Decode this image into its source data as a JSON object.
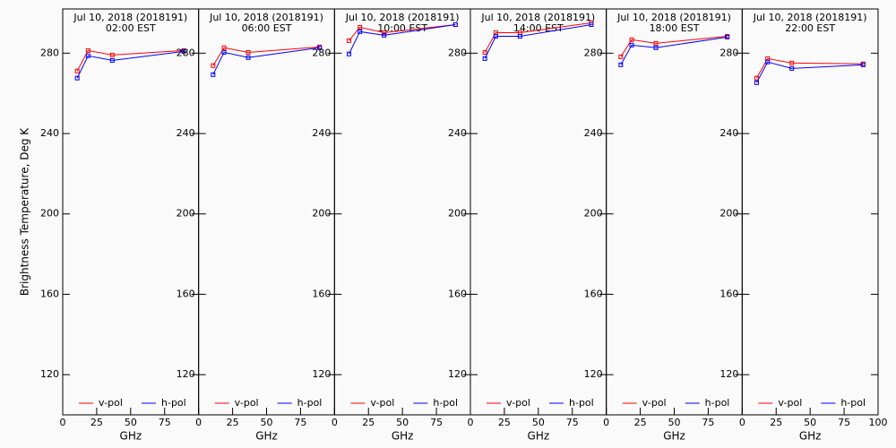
{
  "chart_data": [
    {
      "type": "line",
      "title": "Jul 10, 2018 (2018191)",
      "subtitle": "02:00 EST",
      "ylabel": "Brightness Temperature, Deg K",
      "xlabel": "GHz",
      "x": [
        10.65,
        18.7,
        36.5,
        89
      ],
      "xlim": [
        0,
        100
      ],
      "xticks": [
        0,
        25,
        50,
        75
      ],
      "ylim": [
        100,
        302
      ],
      "yticks": [
        120,
        160,
        200,
        240,
        280
      ],
      "legend": "lower",
      "series": [
        {
          "name": "v-pol",
          "color": "#ff0000",
          "values": [
            271.1,
            281.3,
            279.1,
            281.3
          ]
        },
        {
          "name": "h-pol",
          "color": "#0000ff",
          "values": [
            267.6,
            278.7,
            276.4,
            280.9
          ]
        }
      ]
    },
    {
      "type": "line",
      "title": "Jul 10, 2018 (2018191)",
      "subtitle": "06:00 EST",
      "xlabel": "GHz",
      "x": [
        10.65,
        18.7,
        36.5,
        89
      ],
      "xlim": [
        0,
        100
      ],
      "xticks": [
        0,
        25,
        50,
        75
      ],
      "ylim": [
        100,
        302
      ],
      "yticks": [
        120,
        160,
        200,
        240,
        280
      ],
      "legend": "lower",
      "series": [
        {
          "name": "v-pol",
          "color": "#ff0000",
          "values": [
            273.8,
            282.7,
            280.4,
            283.1
          ]
        },
        {
          "name": "h-pol",
          "color": "#0000ff",
          "values": [
            269.3,
            280.4,
            277.8,
            282.7
          ]
        }
      ]
    },
    {
      "type": "line",
      "title": "Jul 10, 2018 (2018191)",
      "subtitle": "10:00 EST",
      "xlabel": "GHz",
      "x": [
        10.65,
        18.7,
        36.5,
        89
      ],
      "xlim": [
        0,
        100
      ],
      "xticks": [
        0,
        25,
        50,
        75
      ],
      "ylim": [
        100,
        302
      ],
      "yticks": [
        120,
        160,
        200,
        240,
        280
      ],
      "legend": "lower",
      "series": [
        {
          "name": "v-pol",
          "color": "#ff0000",
          "values": [
            286.2,
            292.9,
            290.2,
            294.2
          ]
        },
        {
          "name": "h-pol",
          "color": "#0000ff",
          "values": [
            279.6,
            290.7,
            288.9,
            294.2
          ]
        }
      ]
    },
    {
      "type": "line",
      "title": "Jul 10, 2018 (2018191)",
      "subtitle": "14:00 EST",
      "xlabel": "GHz",
      "x": [
        10.65,
        18.7,
        36.5,
        89
      ],
      "xlim": [
        0,
        100
      ],
      "xticks": [
        0,
        25,
        50,
        75
      ],
      "ylim": [
        100,
        302
      ],
      "yticks": [
        120,
        160,
        200,
        240,
        280
      ],
      "legend": "lower",
      "series": [
        {
          "name": "v-pol",
          "color": "#ff0000",
          "values": [
            280.4,
            290.2,
            290.2,
            295.1
          ]
        },
        {
          "name": "h-pol",
          "color": "#0000ff",
          "values": [
            277.3,
            288.4,
            288.4,
            294.2
          ]
        }
      ]
    },
    {
      "type": "line",
      "title": "Jul 10, 2018 (2018191)",
      "subtitle": "18:00 EST",
      "xlabel": "GHz",
      "x": [
        10.65,
        18.7,
        36.5,
        89
      ],
      "xlim": [
        0,
        100
      ],
      "xticks": [
        0,
        25,
        50,
        75
      ],
      "ylim": [
        100,
        302
      ],
      "yticks": [
        120,
        160,
        200,
        240,
        280
      ],
      "legend": "lower",
      "series": [
        {
          "name": "v-pol",
          "color": "#ff0000",
          "values": [
            278.2,
            286.7,
            284.9,
            288.4
          ]
        },
        {
          "name": "h-pol",
          "color": "#0000ff",
          "values": [
            274.2,
            284.0,
            282.7,
            288.0
          ]
        }
      ]
    },
    {
      "type": "line",
      "title": "Jul 10, 2018 (2018191)",
      "subtitle": "22:00 EST",
      "xlabel": "GHz",
      "x": [
        10.65,
        18.7,
        36.5,
        89
      ],
      "xlim": [
        0,
        100
      ],
      "xticks": [
        0,
        25,
        50,
        75,
        100
      ],
      "ylim": [
        100,
        302
      ],
      "yticks": [
        120,
        160,
        200,
        240,
        280
      ],
      "legend": "lower",
      "series": [
        {
          "name": "v-pol",
          "color": "#ff0000",
          "values": [
            267.6,
            277.3,
            275.1,
            274.7
          ]
        },
        {
          "name": "h-pol",
          "color": "#0000ff",
          "values": [
            265.3,
            275.6,
            272.4,
            274.2
          ]
        }
      ]
    }
  ]
}
